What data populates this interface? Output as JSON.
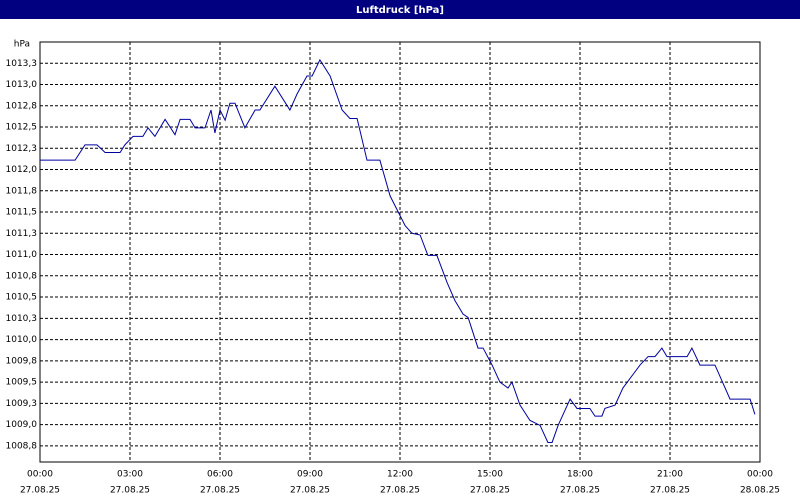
{
  "chart_data": {
    "type": "line",
    "title": "Luftdruck [hPa]",
    "y_label": "hPa",
    "color": "#0000a0",
    "grid": true,
    "xlim": [
      0,
      24
    ],
    "ylim": [
      1008.56,
      1013.5
    ],
    "xticks": [
      {
        "value": 0,
        "label": "00:00",
        "date": "27.08.25"
      },
      {
        "value": 3,
        "label": "03:00",
        "date": "27.08.25"
      },
      {
        "value": 6,
        "label": "06:00",
        "date": "27.08.25"
      },
      {
        "value": 9,
        "label": "09:00",
        "date": "27.08.25"
      },
      {
        "value": 12,
        "label": "12:00",
        "date": "27.08.25"
      },
      {
        "value": 15,
        "label": "15:00",
        "date": "27.08.25"
      },
      {
        "value": 18,
        "label": "18:00",
        "date": "27.08.25"
      },
      {
        "value": 21,
        "label": "21:00",
        "date": "27.08.25"
      },
      {
        "value": 24,
        "label": "00:00",
        "date": "28.08.25"
      }
    ],
    "yticks": [
      {
        "value": 1013.25,
        "label": "1013,3"
      },
      {
        "value": 1013.0,
        "label": "1013,0"
      },
      {
        "value": 1012.75,
        "label": "1012,8"
      },
      {
        "value": 1012.5,
        "label": "1012,5"
      },
      {
        "value": 1012.25,
        "label": "1012,3"
      },
      {
        "value": 1012.0,
        "label": "1012,0"
      },
      {
        "value": 1011.75,
        "label": "1011,8"
      },
      {
        "value": 1011.5,
        "label": "1011,5"
      },
      {
        "value": 1011.25,
        "label": "1011,3"
      },
      {
        "value": 1011.0,
        "label": "1011,0"
      },
      {
        "value": 1010.75,
        "label": "1010,8"
      },
      {
        "value": 1010.5,
        "label": "1010,5"
      },
      {
        "value": 1010.25,
        "label": "1010,3"
      },
      {
        "value": 1010.0,
        "label": "1010,0"
      },
      {
        "value": 1009.75,
        "label": "1009,8"
      },
      {
        "value": 1009.5,
        "label": "1009,5"
      },
      {
        "value": 1009.25,
        "label": "1009,3"
      },
      {
        "value": 1009.0,
        "label": "1009,0"
      },
      {
        "value": 1008.75,
        "label": "1008,8"
      }
    ],
    "x": [
      0,
      1.17,
      1.5,
      1.9,
      2.17,
      2.67,
      2.83,
      3.1,
      3.43,
      3.6,
      3.83,
      4.17,
      4.5,
      4.67,
      5,
      5.17,
      5.5,
      5.7,
      5.83,
      6,
      6.17,
      6.33,
      6.5,
      6.83,
      7.17,
      7.33,
      7.83,
      8.33,
      8.57,
      8.9,
      9.07,
      9.33,
      9.67,
      10.07,
      10.33,
      10.57,
      10.9,
      11.33,
      11.67,
      12.17,
      12.4,
      12.67,
      12.93,
      13.23,
      13.57,
      13.83,
      14.1,
      14.27,
      14.6,
      14.77,
      15.07,
      15.33,
      15.6,
      15.73,
      16,
      16.33,
      16.67,
      16.93,
      17.07,
      17.27,
      17.67,
      17.9,
      18.33,
      18.5,
      18.73,
      18.83,
      19.17,
      19.43,
      20,
      20.27,
      20.5,
      20.73,
      20.9,
      21.57,
      21.73,
      22,
      22.5,
      23,
      23.67,
      23.83
    ],
    "values": [
      1012.11,
      1012.11,
      1012.29,
      1012.29,
      1012.2,
      1012.2,
      1012.29,
      1012.39,
      1012.39,
      1012.49,
      1012.39,
      1012.59,
      1012.41,
      1012.59,
      1012.59,
      1012.49,
      1012.49,
      1012.7,
      1012.43,
      1012.7,
      1012.58,
      1012.78,
      1012.78,
      1012.49,
      1012.7,
      1012.7,
      1012.98,
      1012.7,
      1012.89,
      1013.1,
      1013.1,
      1013.29,
      1013.1,
      1012.7,
      1012.6,
      1012.6,
      1012.11,
      1012.11,
      1011.69,
      1011.34,
      1011.25,
      1011.23,
      1010.99,
      1010.99,
      1010.67,
      1010.46,
      1010.3,
      1010.26,
      1009.9,
      1009.9,
      1009.7,
      1009.5,
      1009.43,
      1009.5,
      1009.23,
      1009.05,
      1008.99,
      1008.79,
      1008.79,
      1008.99,
      1009.3,
      1009.19,
      1009.19,
      1009.1,
      1009.1,
      1009.19,
      1009.23,
      1009.43,
      1009.7,
      1009.8,
      1009.8,
      1009.9,
      1009.8,
      1009.8,
      1009.9,
      1009.7,
      1009.7,
      1009.3,
      1009.3,
      1009.12
    ]
  }
}
